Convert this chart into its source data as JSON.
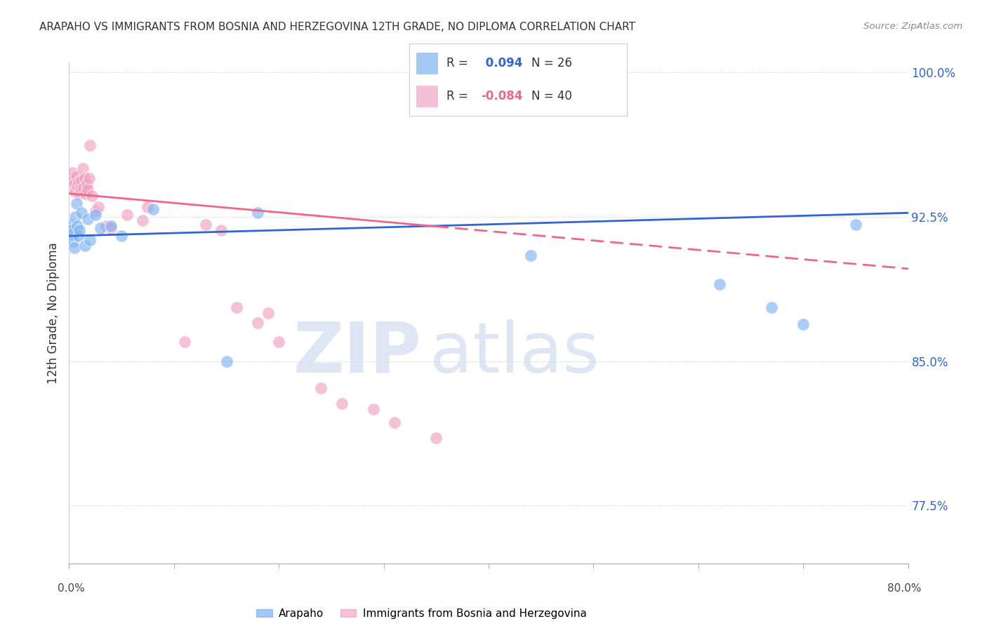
{
  "title": "ARAPAHO VS IMMIGRANTS FROM BOSNIA AND HERZEGOVINA 12TH GRADE, NO DIPLOMA CORRELATION CHART",
  "source": "Source: ZipAtlas.com",
  "ylabel": "12th Grade, No Diploma",
  "ytick_labels": [
    "100.0%",
    "92.5%",
    "85.0%",
    "77.5%"
  ],
  "ytick_values": [
    1.0,
    0.925,
    0.85,
    0.775
  ],
  "watermark_zip": "ZIP",
  "watermark_atlas": "atlas",
  "legend_blue_r": " 0.094",
  "legend_blue_n": "26",
  "legend_pink_r": "-0.084",
  "legend_pink_n": "40",
  "blue_color": "#7EB3F5",
  "pink_color": "#F0A0C0",
  "line_blue_color": "#3366CC",
  "line_pink_color": "#EE6688",
  "blue_points_x": [
    0.001,
    0.002,
    0.003,
    0.004,
    0.005,
    0.006,
    0.007,
    0.008,
    0.009,
    0.01,
    0.012,
    0.015,
    0.018,
    0.02,
    0.025,
    0.03,
    0.04,
    0.05,
    0.08,
    0.15,
    0.18,
    0.44,
    0.62,
    0.67,
    0.7,
    0.75
  ],
  "blue_points_y": [
    0.921,
    0.918,
    0.916,
    0.912,
    0.909,
    0.925,
    0.932,
    0.92,
    0.915,
    0.918,
    0.927,
    0.91,
    0.924,
    0.913,
    0.926,
    0.919,
    0.92,
    0.915,
    0.929,
    0.85,
    0.927,
    0.905,
    0.89,
    0.878,
    0.869,
    0.921
  ],
  "pink_points_x": [
    0.001,
    0.002,
    0.003,
    0.004,
    0.005,
    0.006,
    0.007,
    0.008,
    0.009,
    0.01,
    0.011,
    0.012,
    0.013,
    0.014,
    0.015,
    0.016,
    0.017,
    0.018,
    0.019,
    0.02,
    0.022,
    0.025,
    0.028,
    0.035,
    0.04,
    0.055,
    0.07,
    0.075,
    0.11,
    0.13,
    0.145,
    0.16,
    0.18,
    0.19,
    0.2,
    0.24,
    0.26,
    0.29,
    0.31,
    0.35
  ],
  "pink_points_y": [
    0.94,
    0.945,
    0.948,
    0.944,
    0.942,
    0.938,
    0.946,
    0.941,
    0.943,
    0.937,
    0.94,
    0.944,
    0.95,
    0.94,
    0.945,
    0.937,
    0.942,
    0.939,
    0.945,
    0.962,
    0.936,
    0.928,
    0.93,
    0.92,
    0.919,
    0.926,
    0.923,
    0.93,
    0.86,
    0.921,
    0.918,
    0.878,
    0.87,
    0.875,
    0.86,
    0.836,
    0.828,
    0.825,
    0.818,
    0.81
  ],
  "xlim": [
    0.0,
    0.8
  ],
  "ylim": [
    0.745,
    1.005
  ],
  "blue_line_x0": 0.0,
  "blue_line_x1": 0.8,
  "blue_line_y0": 0.915,
  "blue_line_y1": 0.927,
  "pink_line_x0": 0.0,
  "pink_line_x1": 0.8,
  "pink_line_y0": 0.937,
  "pink_line_y1": 0.898
}
